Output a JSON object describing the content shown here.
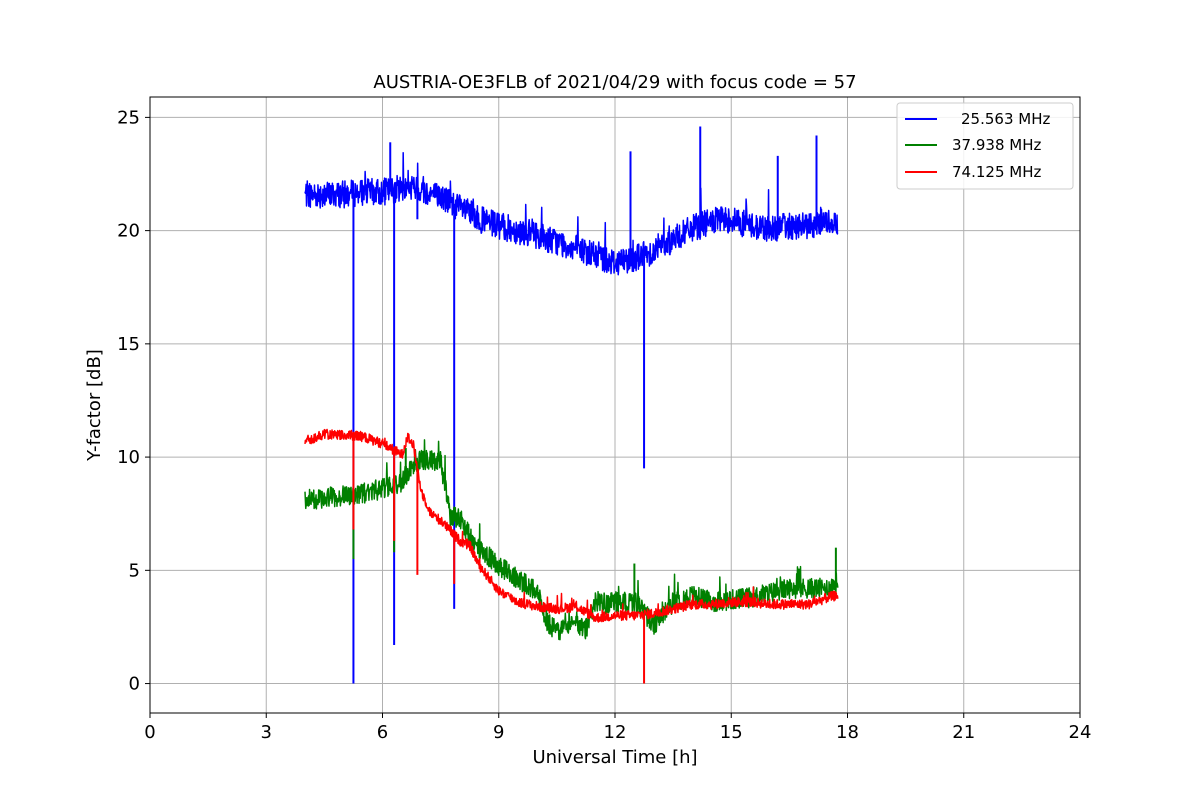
{
  "chart_data": {
    "type": "line",
    "title": "AUSTRIA-OE3FLB of 2021/04/29 with focus code = 57",
    "xlabel": "Universal Time [h]",
    "ylabel": "Y-factor [dB]",
    "xlim": [
      0,
      24
    ],
    "ylim": [
      -1.3,
      25.9
    ],
    "xticks": [
      0,
      3,
      6,
      9,
      12,
      15,
      18,
      21,
      24
    ],
    "xtick_labels": [
      "0",
      "3",
      "6",
      "9",
      "12",
      "15",
      "18",
      "21",
      "24"
    ],
    "yticks": [
      0,
      5,
      10,
      15,
      20,
      25
    ],
    "ytick_labels": [
      "0",
      "5",
      "10",
      "15",
      "20",
      "25"
    ],
    "grid": true,
    "legend_position": "top-right",
    "series": [
      {
        "name": "25.563 MHz",
        "color": "#0000ff",
        "noise": 0.6,
        "x": [
          4.0,
          4.5,
          5.0,
          5.5,
          6.0,
          6.5,
          7.0,
          7.5,
          8.0,
          8.5,
          9.0,
          9.5,
          10.0,
          10.5,
          11.0,
          11.5,
          12.0,
          12.5,
          13.0,
          13.5,
          14.0,
          14.5,
          15.0,
          15.5,
          16.0,
          16.5,
          17.0,
          17.5,
          17.75
        ],
        "y": [
          21.6,
          21.6,
          21.6,
          21.7,
          21.7,
          21.9,
          21.8,
          21.5,
          21.0,
          20.5,
          20.2,
          20.0,
          19.8,
          19.5,
          19.2,
          18.9,
          18.6,
          18.8,
          19.1,
          19.6,
          20.1,
          20.4,
          20.5,
          20.2,
          20.1,
          20.2,
          20.2,
          20.4,
          20.4
        ],
        "spikes": [
          [
            5.25,
            0.0
          ],
          [
            6.3,
            1.7
          ],
          [
            6.9,
            20.5
          ],
          [
            7.85,
            3.3
          ],
          [
            12.75,
            9.5
          ],
          [
            14.2,
            24.6
          ],
          [
            12.4,
            23.5
          ],
          [
            6.2,
            23.9
          ],
          [
            17.2,
            24.2
          ],
          [
            16.2,
            23.3
          ]
        ]
      },
      {
        "name": "37.938 MHz",
        "color": "#008000",
        "noise": 0.45,
        "x": [
          4.0,
          4.5,
          5.0,
          5.5,
          6.0,
          6.5,
          6.75,
          7.0,
          7.5,
          7.75,
          8.0,
          8.25,
          8.5,
          9.0,
          9.5,
          10.0,
          10.25,
          10.5,
          11.0,
          11.25,
          11.5,
          11.75,
          12.0,
          12.5,
          12.75,
          13.0,
          13.5,
          14.0,
          14.5,
          15.0,
          15.5,
          16.0,
          16.5,
          17.0,
          17.5,
          17.75
        ],
        "y": [
          8.1,
          8.2,
          8.3,
          8.4,
          8.6,
          8.9,
          9.6,
          9.9,
          9.8,
          7.4,
          7.3,
          6.5,
          5.9,
          5.2,
          4.6,
          4.1,
          2.7,
          2.3,
          2.6,
          2.4,
          3.6,
          3.5,
          3.6,
          3.6,
          3.2,
          2.5,
          3.6,
          3.9,
          3.6,
          3.7,
          3.8,
          4.0,
          4.2,
          4.2,
          4.2,
          4.5
        ],
        "spikes": [
          [
            5.25,
            5.5
          ],
          [
            6.3,
            5.8
          ],
          [
            7.85,
            7.7
          ],
          [
            6.6,
            10.4
          ],
          [
            17.7,
            6.0
          ],
          [
            12.5,
            5.3
          ]
        ]
      },
      {
        "name": "74.125 MHz",
        "color": "#ff0000",
        "noise": 0.22,
        "x": [
          4.0,
          4.5,
          5.0,
          5.5,
          6.0,
          6.5,
          6.65,
          6.8,
          7.0,
          7.25,
          7.5,
          8.0,
          8.25,
          8.5,
          9.0,
          9.5,
          10.0,
          10.5,
          11.0,
          11.5,
          12.0,
          12.5,
          13.0,
          13.5,
          14.0,
          14.5,
          15.0,
          15.5,
          16.0,
          16.5,
          17.0,
          17.5,
          17.75
        ],
        "y": [
          10.7,
          11.0,
          11.0,
          10.9,
          10.6,
          10.1,
          10.9,
          10.5,
          8.5,
          7.5,
          7.2,
          6.3,
          6.1,
          5.2,
          4.1,
          3.6,
          3.4,
          3.3,
          3.4,
          2.9,
          3.0,
          3.0,
          3.1,
          3.3,
          3.5,
          3.5,
          3.6,
          3.6,
          3.5,
          3.5,
          3.5,
          3.8,
          3.9
        ],
        "spikes": [
          [
            5.25,
            6.8
          ],
          [
            6.3,
            6.3
          ],
          [
            6.9,
            4.8
          ],
          [
            7.85,
            4.4
          ],
          [
            12.75,
            0.0
          ]
        ]
      }
    ]
  }
}
